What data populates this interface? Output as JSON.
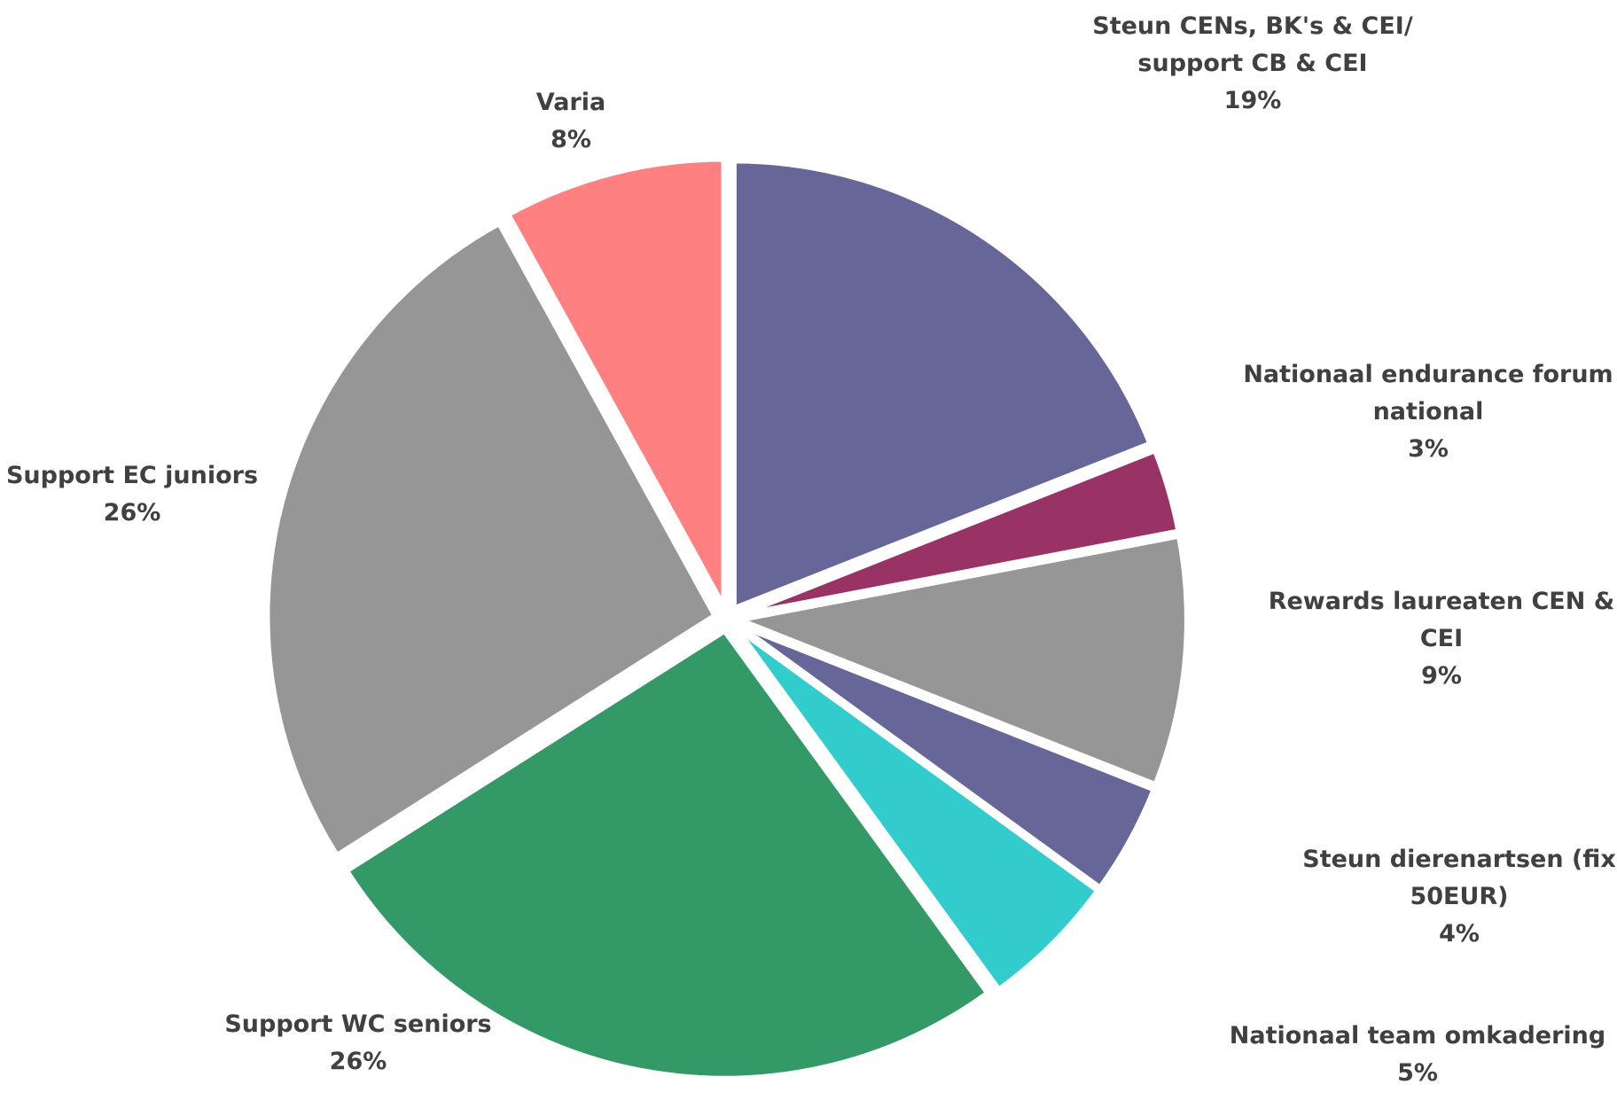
{
  "chart_data": {
    "type": "pie",
    "categories": [
      "Steun CENs, BK's  & CEI/ support CB & CEI",
      "Nationaal endurance forum national",
      "Rewards laureaten CEN & CEI",
      "Steun dierenartsen (fix 50EUR)",
      "Nationaal team omkadering",
      "Support WC seniors",
      "Support EC juniors",
      "Varia"
    ],
    "values": [
      19,
      3,
      9,
      4,
      5,
      26,
      26,
      8
    ],
    "value_labels": [
      "19%",
      "3%",
      "9%",
      "4%",
      "5%",
      "26%",
      "26%",
      "8%"
    ],
    "colors": [
      "#666699",
      "#993366",
      "#969696",
      "#666699",
      "#33cccc",
      "#339966",
      "#969696",
      "#ff8080"
    ]
  }
}
